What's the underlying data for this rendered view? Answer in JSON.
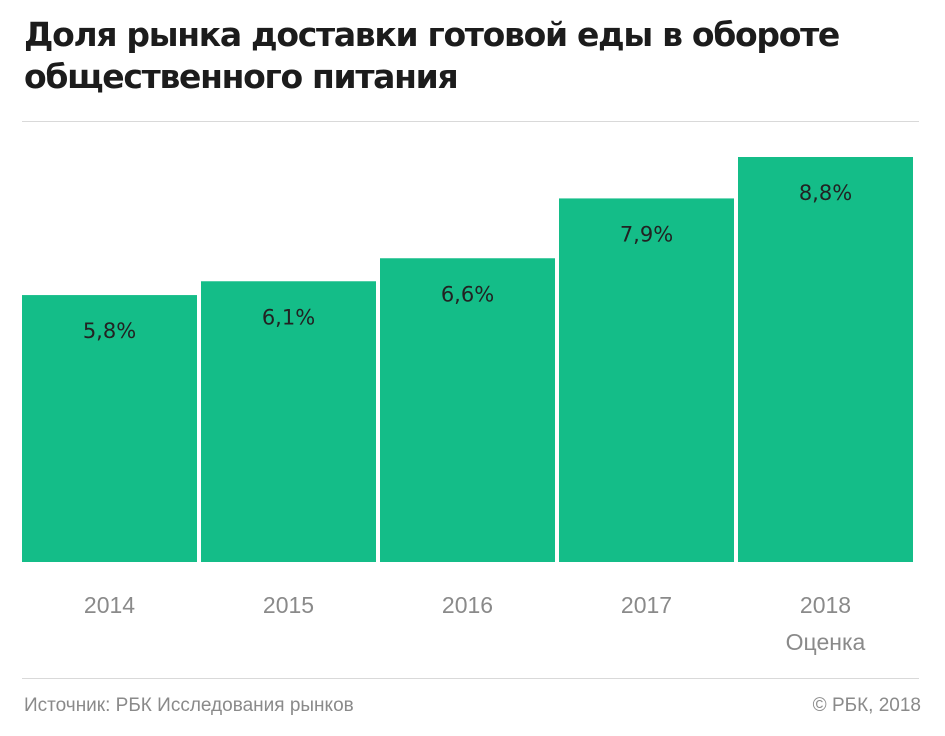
{
  "title_line1": "Доля рынка доставки готовой еды в обороте",
  "title_line2": "общественного питания",
  "source": "Источник: РБК Исследования рынков",
  "copyright": "© РБК, 2018",
  "colors": {
    "bar": "#14bd88",
    "label": "#222222",
    "tick": "#8a8a8a",
    "rule": "#d9d9d9"
  },
  "chart_data": {
    "type": "bar",
    "title": "Доля рынка доставки готовой еды в обороте общественного питания",
    "categories": [
      "2014",
      "2015",
      "2016",
      "2017",
      "2018"
    ],
    "category_notes": [
      "",
      "",
      "",
      "",
      "Оценка"
    ],
    "values": [
      5.8,
      6.1,
      6.6,
      7.9,
      8.8
    ],
    "value_labels": [
      "5,8%",
      "6,1%",
      "6,6%",
      "7,9%",
      "8,8%"
    ],
    "unit": "%",
    "ylim": [
      0,
      8.8
    ],
    "grid": false,
    "legend": "none"
  }
}
